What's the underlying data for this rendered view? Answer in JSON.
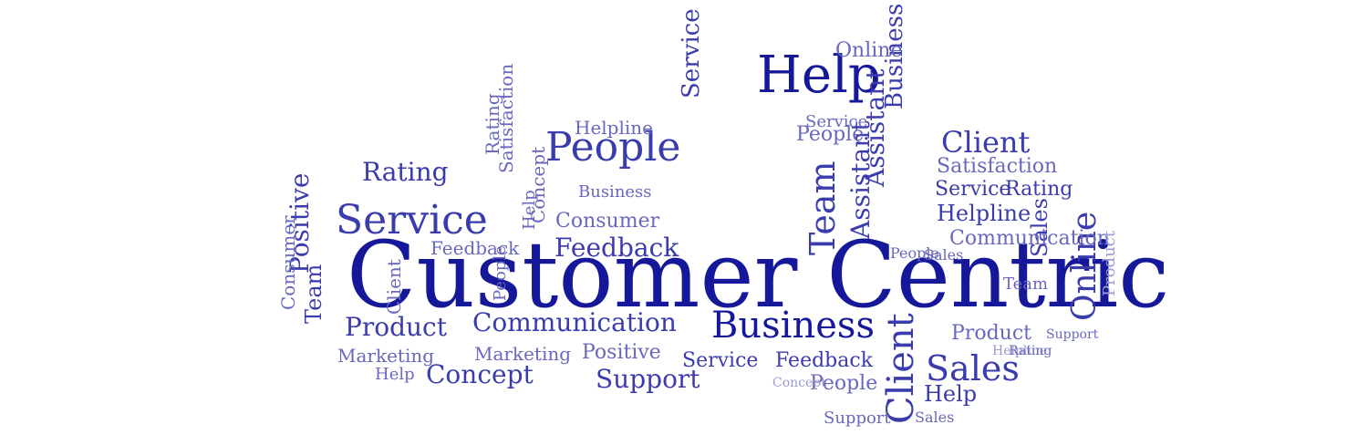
{
  "colors": {
    "dark": "#16189a",
    "mid": "#3a3cae",
    "light": "#6768be",
    "faint": "#9a9bd2"
  },
  "title": "Customer Centric",
  "words": [
    "Help",
    "People",
    "Service",
    "Business",
    "Client",
    "Sales",
    "Rating",
    "Product",
    "Communication",
    "Feedback",
    "Marketing",
    "Concept",
    "Support",
    "Positive",
    "Team",
    "Consumer",
    "Online",
    "Helpline",
    "Assistant",
    "Satisfaction"
  ]
}
